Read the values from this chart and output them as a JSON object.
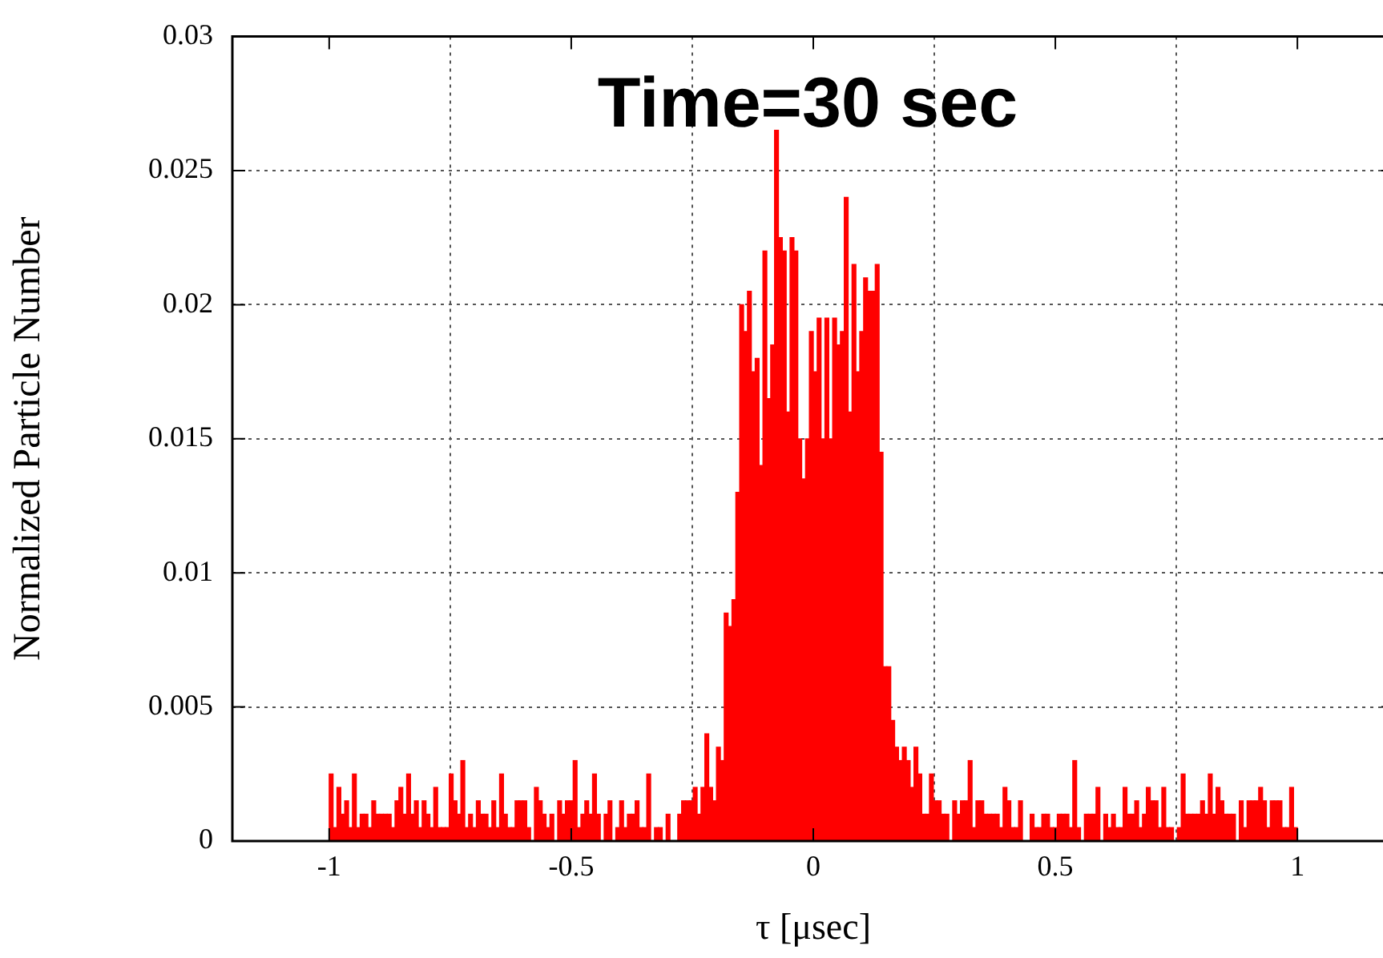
{
  "chart_data": {
    "type": "histogram",
    "title": "Time=30 sec",
    "xlabel": "τ [μsec]",
    "ylabel": "Normalized Particle Number",
    "color": "#ff0000",
    "bins": [
      -1,
      -0.992,
      -0.984,
      -0.976,
      -0.968,
      -0.96,
      -0.952,
      -0.944,
      -0.936,
      -0.928,
      -0.92,
      -0.912,
      -0.904,
      -0.896,
      -0.888,
      -0.88,
      -0.872,
      -0.864,
      -0.856,
      -0.848,
      -0.84,
      -0.832,
      -0.824,
      -0.816,
      -0.808,
      -0.8,
      -0.792,
      -0.784,
      -0.776,
      -0.768,
      -0.76,
      -0.752,
      -0.744,
      -0.736,
      -0.728,
      -0.72,
      -0.712,
      -0.704,
      -0.696,
      -0.688,
      -0.68,
      -0.672,
      -0.664,
      -0.656,
      -0.648,
      -0.64,
      -0.632,
      -0.624,
      -0.616,
      -0.608,
      -0.6,
      -0.592,
      -0.584,
      -0.576,
      -0.568,
      -0.56,
      -0.552,
      -0.544,
      -0.536,
      -0.528,
      -0.52,
      -0.512,
      -0.504,
      -0.496,
      -0.488,
      -0.48,
      -0.472,
      -0.464,
      -0.456,
      -0.448,
      -0.44,
      -0.432,
      -0.424,
      -0.416,
      -0.408,
      -0.4,
      -0.392,
      -0.384,
      -0.376,
      -0.368,
      -0.36,
      -0.352,
      -0.344,
      -0.336,
      -0.328,
      -0.32,
      -0.312,
      -0.304,
      -0.296,
      -0.288,
      -0.28,
      -0.272,
      -0.264,
      -0.256,
      -0.248,
      -0.24,
      -0.232,
      -0.224,
      -0.216,
      -0.208,
      -0.2,
      -0.192,
      -0.184,
      -0.176,
      -0.168,
      -0.16,
      -0.152,
      -0.144,
      -0.136,
      -0.128,
      -0.12,
      -0.112,
      -0.104,
      -0.096,
      -0.088,
      -0.08,
      -0.072,
      -0.064,
      -0.056,
      -0.048,
      -0.04,
      -0.032,
      -0.024,
      -0.016,
      -0.008,
      0,
      0.008,
      0.016,
      0.024,
      0.032,
      0.04,
      0.048,
      0.056,
      0.064,
      0.072,
      0.08,
      0.088,
      0.096,
      0.104,
      0.112,
      0.12,
      0.128,
      0.136,
      0.144,
      0.152,
      0.16,
      0.168,
      0.176,
      0.184,
      0.192,
      0.2,
      0.208,
      0.216,
      0.224,
      0.232,
      0.24,
      0.248,
      0.256,
      0.264,
      0.272,
      0.28,
      0.288,
      0.296,
      0.304,
      0.312,
      0.32,
      0.328,
      0.336,
      0.344,
      0.352,
      0.36,
      0.368,
      0.376,
      0.384,
      0.392,
      0.4,
      0.408,
      0.416,
      0.424,
      0.432,
      0.44,
      0.448,
      0.456,
      0.464,
      0.472,
      0.48,
      0.488,
      0.496,
      0.504,
      0.512,
      0.52,
      0.528,
      0.536,
      0.544,
      0.552,
      0.56,
      0.568,
      0.576,
      0.584,
      0.592,
      0.6,
      0.608,
      0.616,
      0.624,
      0.632,
      0.64,
      0.648,
      0.656,
      0.664,
      0.672,
      0.68,
      0.688,
      0.696,
      0.704,
      0.712,
      0.72,
      0.728,
      0.736,
      0.744,
      0.752,
      0.76,
      0.768,
      0.776,
      0.784,
      0.792,
      0.8,
      0.808,
      0.816,
      0.824,
      0.832,
      0.84,
      0.848,
      0.856,
      0.864,
      0.872,
      0.88,
      0.888,
      0.896,
      0.904,
      0.912,
      0.92,
      0.928,
      0.936,
      0.944,
      0.952,
      0.96,
      0.968,
      0.976,
      0.984,
      0.992,
      1
    ],
    "values": [
      0.0025,
      0.0005,
      0.002,
      0.001,
      0.0015,
      0.0005,
      0.0025,
      0.0005,
      0.001,
      0.001,
      0.0005,
      0.0015,
      0.001,
      0.001,
      0.001,
      0.001,
      0.0005,
      0.0015,
      0.002,
      0.001,
      0.0025,
      0.001,
      0.0015,
      0.0005,
      0.0015,
      0.001,
      0.0005,
      0.002,
      0.0005,
      0.0005,
      0.0005,
      0.0025,
      0.0015,
      0.001,
      0.003,
      0.0005,
      0.001,
      0.0005,
      0.0015,
      0.001,
      0.001,
      0.0005,
      0.0015,
      0.0005,
      0.0025,
      0.001,
      0.0005,
      0.0005,
      0.0015,
      0.0015,
      0.0015,
      0.0005,
      0,
      0.002,
      0.0015,
      0.001,
      0.0005,
      0.001,
      0,
      0.0015,
      0.001,
      0.0015,
      0.0015,
      0.003,
      0.0005,
      0.001,
      0.0015,
      0.001,
      0.0025,
      0.001,
      0,
      0.001,
      0.0015,
      0,
      0.0005,
      0.0015,
      0.0005,
      0.001,
      0.001,
      0.0015,
      0.0005,
      0.0005,
      0.0025,
      0,
      0.0005,
      0.0005,
      0,
      0.001,
      0,
      0,
      0.001,
      0.0015,
      0.0015,
      0.0015,
      0.002,
      0.001,
      0.002,
      0.004,
      0.002,
      0.0015,
      0.0035,
      0.003,
      0.0085,
      0.008,
      0.009,
      0.013,
      0.02,
      0.019,
      0.0205,
      0.0175,
      0.018,
      0.014,
      0.022,
      0.0165,
      0.0185,
      0.0265,
      0.0225,
      0.022,
      0.016,
      0.0225,
      0.022,
      0.015,
      0.0135,
      0.015,
      0.019,
      0.0175,
      0.0195,
      0.015,
      0.0195,
      0.015,
      0.0195,
      0.0185,
      0.019,
      0.024,
      0.016,
      0.0215,
      0.0175,
      0.019,
      0.021,
      0.0205,
      0.0205,
      0.0215,
      0.0145,
      0.0065,
      0.0065,
      0.0045,
      0.0035,
      0.003,
      0.0035,
      0.003,
      0.002,
      0.0035,
      0.0025,
      0.001,
      0.001,
      0.0025,
      0.0015,
      0.0015,
      0.001,
      0.001,
      0,
      0.0015,
      0.001,
      0.0015,
      0.0015,
      0.003,
      0.0005,
      0.0015,
      0.0015,
      0.001,
      0.001,
      0.001,
      0.001,
      0.0005,
      0.002,
      0.0015,
      0.0005,
      0.0005,
      0.0015,
      0,
      0,
      0.001,
      0.0005,
      0.0005,
      0.001,
      0.001,
      0.0005,
      0.0005,
      0.001,
      0.001,
      0.001,
      0.0005,
      0.003,
      0.0005,
      0,
      0.001,
      0.001,
      0.001,
      0.002,
      0,
      0.001,
      0.0005,
      0.001,
      0.0005,
      0.0005,
      0.002,
      0.001,
      0.001,
      0.0015,
      0.0005,
      0.001,
      0.002,
      0.0015,
      0.0015,
      0.0005,
      0.002,
      0.0005,
      0.0005,
      0,
      0.0005,
      0.0025,
      0.001,
      0.001,
      0.001,
      0.001,
      0.0015,
      0.001,
      0.0025,
      0.001,
      0.002,
      0.0015,
      0.001,
      0.001,
      0.001,
      0,
      0.0015,
      0.0005,
      0.0015,
      0.0015,
      0.0015,
      0.002,
      0.0015,
      0.0005,
      0.0015,
      0.0015,
      0.0015,
      0.0005,
      0.0005,
      0.002,
      0.0005
    ],
    "xlim": [
      -1.2,
      1.2
    ],
    "xticks": [
      -1,
      -0.5,
      0,
      0.5,
      1
    ],
    "ylim": [
      0,
      0.03
    ],
    "yticks": [
      0,
      0.005,
      0.01,
      0.015,
      0.02,
      0.025,
      0.03
    ],
    "grid": true
  }
}
